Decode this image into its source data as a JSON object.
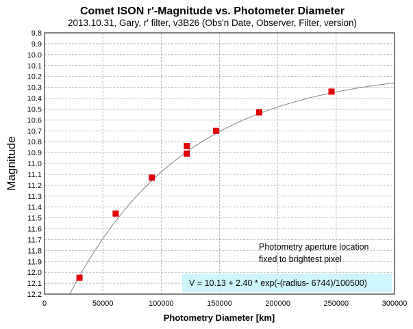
{
  "chart_data": {
    "type": "scatter",
    "title": "Comet ISON r'-Magnitude vs. Photometer Diameter",
    "subtitle": "2013.10.31,  Gary,  r' filter,  v3B26 (Obs'n Date, Observer, Filter, version)",
    "xlabel": "Photometry Diameter  [km]",
    "ylabel": "Magnitude",
    "xlim": [
      0,
      300000
    ],
    "ylim": [
      9.8,
      12.2
    ],
    "y_inverted": true,
    "grid": true,
    "x_ticks": [
      0,
      50000,
      100000,
      150000,
      200000,
      250000,
      300000
    ],
    "x_tick_labels": [
      "0",
      "50000",
      "100000",
      "150000",
      "200000",
      "250000",
      "300000"
    ],
    "y_tick_labels": [
      "9.8",
      "9.9",
      "10.0",
      "10.1",
      "10.2",
      "10.3",
      "10.4",
      "10.5",
      "10.6",
      "10.7",
      "10.8",
      "10.9",
      "11.0",
      "11.1",
      "11.2",
      "11.3",
      "11.4",
      "11.5",
      "11.6",
      "11.7",
      "11.8",
      "11.9",
      "12.0",
      "12.1",
      "12.2"
    ],
    "points": {
      "color": "#e00000",
      "x": [
        30000,
        61000,
        92000,
        122000,
        122000,
        147000,
        184000,
        246000
      ],
      "y": [
        12.05,
        11.46,
        11.13,
        10.84,
        10.91,
        10.7,
        10.53,
        10.34
      ]
    },
    "fit_curve": {
      "color": "#808080",
      "formula_text": "V = 10.13 + 2.40 * exp(-(radius- 6744)/100500)",
      "baseline": 10.13,
      "amplitude": 2.4,
      "offset": 6744,
      "scale": 100500,
      "x_range": [
        21500,
        300000
      ]
    },
    "annotation": {
      "lines": [
        "Photometry aperture location",
        "fixed to brightest pixel"
      ]
    },
    "formula_box_color": "#ccf6fc"
  }
}
